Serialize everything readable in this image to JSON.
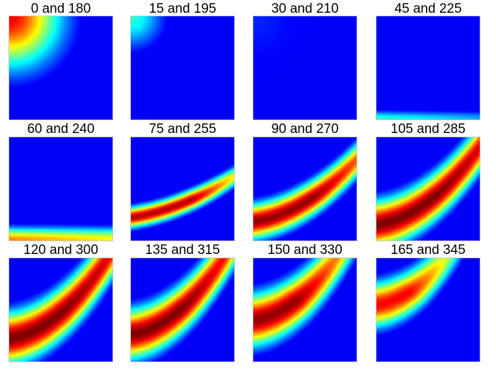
{
  "chart_data": {
    "type": "heatmap",
    "colormap": "jet",
    "layout": "4 columns x 3 rows",
    "panels": [
      {
        "title": "0 and 180"
      },
      {
        "title": "15 and 195"
      },
      {
        "title": "30 and 210"
      },
      {
        "title": "45 and 225"
      },
      {
        "title": "60 and 240"
      },
      {
        "title": "75 and 255"
      },
      {
        "title": "90 and 270"
      },
      {
        "title": "105 and 285"
      },
      {
        "title": "120 and 300"
      },
      {
        "title": "135 and 315"
      },
      {
        "title": "150 and 330"
      },
      {
        "title": "165 and 345"
      }
    ]
  }
}
